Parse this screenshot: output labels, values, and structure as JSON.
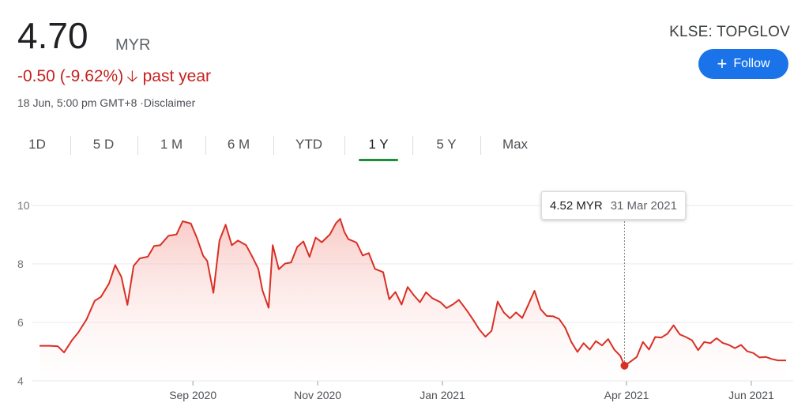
{
  "quote": {
    "price": "4.70",
    "currency": "MYR",
    "change": "-0.50 (-9.62%)",
    "period": "past year",
    "timestamp": "18 Jun, 5:00 pm GMT+8 ·Disclaimer",
    "ticker": "KLSE: TOPGLOV",
    "down_color": "#c5221f"
  },
  "follow": {
    "label": "Follow",
    "icon": "plus-icon",
    "color": "#1a73e8"
  },
  "tabs": [
    "1D",
    "5 D",
    "1 M",
    "6 M",
    "YTD",
    "1 Y",
    "5 Y",
    "Max"
  ],
  "active_tab": "1 Y",
  "tooltip": {
    "value": "4.52 MYR",
    "date": "31 Mar 2021"
  },
  "chart_data": {
    "type": "area",
    "title": "",
    "xlabel": "",
    "ylabel": "",
    "y_ticks": [
      "10",
      "8",
      "6",
      "4"
    ],
    "ylim": [
      4,
      10
    ],
    "x_ticks": [
      {
        "label": "Sep 2020",
        "date": "2020-09-01"
      },
      {
        "label": "Nov 2020",
        "date": "2020-11-01"
      },
      {
        "label": "Jan 2021",
        "date": "2021-01-01"
      },
      {
        "label": "Apr 2021",
        "date": "2021-04-01"
      },
      {
        "label": "Jun 2021",
        "date": "2021-06-01"
      }
    ],
    "xlim": [
      "2020-06-18",
      "2021-06-18"
    ],
    "grid": true,
    "line_color": "#d93025",
    "highlight": {
      "date": "2021-03-31",
      "value": 4.52
    },
    "series": [
      {
        "points": [
          [
            "2020-06-18",
            5.2
          ],
          [
            "2020-06-23",
            5.2
          ],
          [
            "2020-06-27",
            5.18
          ],
          [
            "2020-06-30",
            4.97
          ],
          [
            "2020-07-04",
            5.4
          ],
          [
            "2020-07-07",
            5.66
          ],
          [
            "2020-07-11",
            6.1
          ],
          [
            "2020-07-15",
            6.74
          ],
          [
            "2020-07-18",
            6.87
          ],
          [
            "2020-07-22",
            7.33
          ],
          [
            "2020-07-25",
            7.96
          ],
          [
            "2020-07-28",
            7.56
          ],
          [
            "2020-07-31",
            6.6
          ],
          [
            "2020-08-03",
            7.93
          ],
          [
            "2020-08-06",
            8.19
          ],
          [
            "2020-08-10",
            8.25
          ],
          [
            "2020-08-13",
            8.61
          ],
          [
            "2020-08-16",
            8.64
          ],
          [
            "2020-08-20",
            8.96
          ],
          [
            "2020-08-24",
            9.01
          ],
          [
            "2020-08-27",
            9.46
          ],
          [
            "2020-08-31",
            9.38
          ],
          [
            "2020-09-03",
            8.88
          ],
          [
            "2020-09-06",
            8.28
          ],
          [
            "2020-09-08",
            8.1
          ],
          [
            "2020-09-11",
            7.01
          ],
          [
            "2020-09-14",
            8.8
          ],
          [
            "2020-09-17",
            9.34
          ],
          [
            "2020-09-20",
            8.64
          ],
          [
            "2020-09-23",
            8.8
          ],
          [
            "2020-09-27",
            8.64
          ],
          [
            "2020-09-30",
            8.25
          ],
          [
            "2020-10-03",
            7.83
          ],
          [
            "2020-10-05",
            7.1
          ],
          [
            "2020-10-08",
            6.5
          ],
          [
            "2020-10-10",
            8.64
          ],
          [
            "2020-10-13",
            7.82
          ],
          [
            "2020-10-16",
            8.01
          ],
          [
            "2020-10-19",
            8.05
          ],
          [
            "2020-10-22",
            8.58
          ],
          [
            "2020-10-25",
            8.77
          ],
          [
            "2020-10-28",
            8.24
          ],
          [
            "2020-10-31",
            8.9
          ],
          [
            "2020-11-03",
            8.74
          ],
          [
            "2020-11-07",
            9.01
          ],
          [
            "2020-11-10",
            9.4
          ],
          [
            "2020-11-12",
            9.54
          ],
          [
            "2020-11-14",
            9.1
          ],
          [
            "2020-11-16",
            8.85
          ],
          [
            "2020-11-20",
            8.73
          ],
          [
            "2020-11-23",
            8.29
          ],
          [
            "2020-11-26",
            8.37
          ],
          [
            "2020-11-29",
            7.83
          ],
          [
            "2020-12-03",
            7.72
          ],
          [
            "2020-12-06",
            6.79
          ],
          [
            "2020-12-09",
            7.04
          ],
          [
            "2020-12-12",
            6.61
          ],
          [
            "2020-12-15",
            7.21
          ],
          [
            "2020-12-18",
            6.93
          ],
          [
            "2020-12-21",
            6.69
          ],
          [
            "2020-12-24",
            7.03
          ],
          [
            "2020-12-27",
            6.83
          ],
          [
            "2020-12-31",
            6.69
          ],
          [
            "2021-01-03",
            6.49
          ],
          [
            "2021-01-06",
            6.61
          ],
          [
            "2021-01-09",
            6.77
          ],
          [
            "2021-01-13",
            6.4
          ],
          [
            "2021-01-16",
            6.09
          ],
          [
            "2021-01-19",
            5.76
          ],
          [
            "2021-01-22",
            5.51
          ],
          [
            "2021-01-25",
            5.71
          ],
          [
            "2021-01-28",
            6.71
          ],
          [
            "2021-01-31",
            6.34
          ],
          [
            "2021-02-03",
            6.14
          ],
          [
            "2021-02-06",
            6.34
          ],
          [
            "2021-02-09",
            6.15
          ],
          [
            "2021-02-12",
            6.61
          ],
          [
            "2021-02-15",
            7.08
          ],
          [
            "2021-02-18",
            6.45
          ],
          [
            "2021-02-21",
            6.22
          ],
          [
            "2021-02-24",
            6.21
          ],
          [
            "2021-02-27",
            6.12
          ],
          [
            "2021-03-02",
            5.82
          ],
          [
            "2021-03-05",
            5.33
          ],
          [
            "2021-03-08",
            4.99
          ],
          [
            "2021-03-11",
            5.29
          ],
          [
            "2021-03-14",
            5.07
          ],
          [
            "2021-03-17",
            5.36
          ],
          [
            "2021-03-20",
            5.21
          ],
          [
            "2021-03-23",
            5.43
          ],
          [
            "2021-03-26",
            5.07
          ],
          [
            "2021-03-29",
            4.85
          ],
          [
            "2021-03-31",
            4.52
          ],
          [
            "2021-04-03",
            4.66
          ],
          [
            "2021-04-06",
            4.82
          ],
          [
            "2021-04-09",
            5.33
          ],
          [
            "2021-04-12",
            5.07
          ],
          [
            "2021-04-15",
            5.5
          ],
          [
            "2021-04-18",
            5.48
          ],
          [
            "2021-04-21",
            5.61
          ],
          [
            "2021-04-24",
            5.9
          ],
          [
            "2021-04-27",
            5.59
          ],
          [
            "2021-04-30",
            5.5
          ],
          [
            "2021-05-03",
            5.39
          ],
          [
            "2021-05-06",
            5.05
          ],
          [
            "2021-05-09",
            5.33
          ],
          [
            "2021-05-12",
            5.29
          ],
          [
            "2021-05-15",
            5.46
          ],
          [
            "2021-05-18",
            5.3
          ],
          [
            "2021-05-21",
            5.23
          ],
          [
            "2021-05-24",
            5.12
          ],
          [
            "2021-05-27",
            5.23
          ],
          [
            "2021-05-30",
            5.01
          ],
          [
            "2021-06-02",
            4.95
          ],
          [
            "2021-06-05",
            4.8
          ],
          [
            "2021-06-08",
            4.82
          ],
          [
            "2021-06-11",
            4.75
          ],
          [
            "2021-06-14",
            4.7
          ],
          [
            "2021-06-18",
            4.7
          ]
        ]
      }
    ]
  }
}
